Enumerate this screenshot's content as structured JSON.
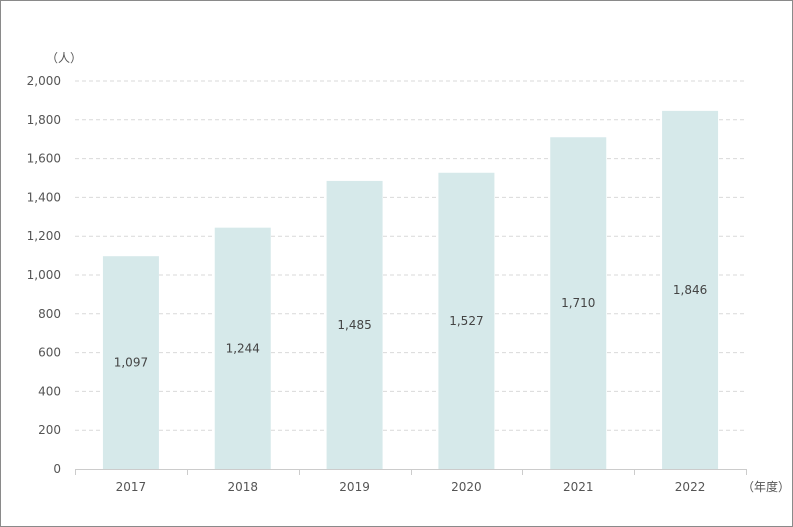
{
  "chart_data": {
    "type": "bar",
    "y_unit": "（人）",
    "x_unit": "（年度）",
    "categories": [
      "2017",
      "2018",
      "2019",
      "2020",
      "2021",
      "2022"
    ],
    "values": [
      1097,
      1244,
      1485,
      1527,
      1710,
      1846
    ],
    "data_labels": [
      "1,097",
      "1,244",
      "1,485",
      "1,527",
      "1,710",
      "1,846"
    ],
    "ylim": [
      0,
      2000
    ],
    "yticks": [
      0,
      200,
      400,
      600,
      800,
      1000,
      1200,
      1400,
      1600,
      1800,
      2000
    ],
    "ytick_labels": [
      "0",
      "200",
      "400",
      "600",
      "800",
      "1,000",
      "1,200",
      "1,400",
      "1,600",
      "1,800",
      "2,000"
    ],
    "grid": "horizontal-dashed",
    "colors": {
      "bar": "#d6e9ea",
      "grid": "#d9d9d9",
      "axis": "#cccccc"
    }
  }
}
